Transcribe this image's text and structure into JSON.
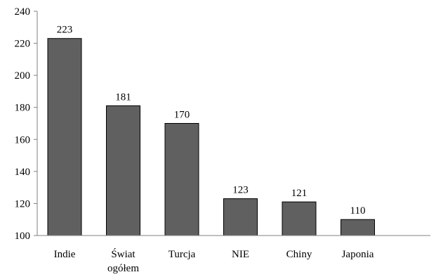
{
  "chart_data": {
    "type": "bar",
    "categories": [
      "Indie",
      "Świat ogółem",
      "Turcja",
      "NIE",
      "Chiny",
      "Japonia"
    ],
    "category_lines": [
      [
        "Indie"
      ],
      [
        "Świat",
        "ogółem"
      ],
      [
        "Turcja"
      ],
      [
        "NIE"
      ],
      [
        "Chiny"
      ],
      [
        "Japonia"
      ]
    ],
    "values": [
      223,
      181,
      170,
      123,
      121,
      110
    ],
    "title": "",
    "xlabel": "",
    "ylabel": "",
    "ylim": [
      100,
      240
    ],
    "yticks": [
      100,
      120,
      140,
      160,
      180,
      200,
      220,
      240
    ],
    "grid": false,
    "legend": "none",
    "bar_color": "#606060",
    "bar_edge_color": "#000000",
    "axis_color": "#808080"
  }
}
